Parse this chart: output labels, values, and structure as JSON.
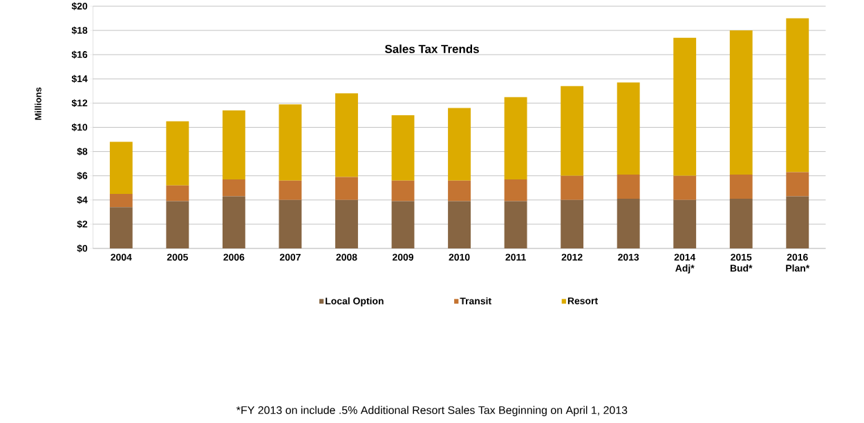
{
  "chart_data": {
    "type": "bar",
    "stacked": true,
    "title": "Sales Tax Trends",
    "ylabel": "Millions",
    "categories": [
      "2004",
      "2005",
      "2006",
      "2007",
      "2008",
      "2009",
      "2010",
      "2011",
      "2012",
      "2013",
      "2014 Adj*",
      "2015 Bud*",
      "2016 Plan*"
    ],
    "series": [
      {
        "name": "Local Option",
        "color": "#876542",
        "values": [
          3.4,
          3.9,
          4.3,
          4.0,
          4.0,
          3.9,
          3.9,
          3.9,
          4.0,
          4.1,
          4.0,
          4.1,
          4.3
        ]
      },
      {
        "name": "Transit",
        "color": "#c47432",
        "values": [
          1.1,
          1.3,
          1.4,
          1.6,
          1.9,
          1.7,
          1.7,
          1.8,
          2.0,
          2.0,
          2.0,
          2.0,
          2.0
        ]
      },
      {
        "name": "Resort",
        "color": "#dcab00",
        "values": [
          4.3,
          5.3,
          5.7,
          6.3,
          6.9,
          5.4,
          6.0,
          6.8,
          7.4,
          7.6,
          11.4,
          11.9,
          12.7
        ]
      }
    ],
    "ylim": [
      0,
      20
    ],
    "yticks": [
      {
        "value": 0,
        "label": "$0"
      },
      {
        "value": 2,
        "label": "$2"
      },
      {
        "value": 4,
        "label": "$4"
      },
      {
        "value": 6,
        "label": "$6"
      },
      {
        "value": 8,
        "label": "$8"
      },
      {
        "value": 10,
        "label": "$10"
      },
      {
        "value": 12,
        "label": "$12"
      },
      {
        "value": 14,
        "label": "$14"
      },
      {
        "value": 16,
        "label": "$16"
      },
      {
        "value": 18,
        "label": "$18"
      },
      {
        "value": 20,
        "label": "$20"
      }
    ],
    "grid": "y",
    "legend": "bottom",
    "annotations": [
      "*FY 2013 on include .5% Additional Resort  Sales Tax Beginning on April 1, 2013"
    ]
  }
}
